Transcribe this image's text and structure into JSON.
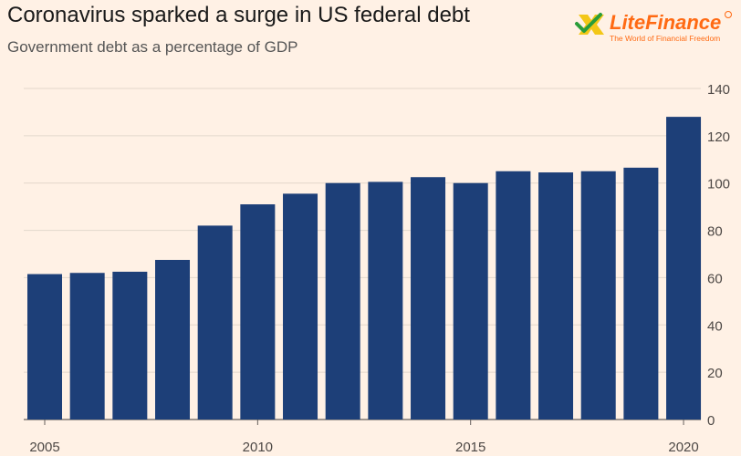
{
  "title": "Coronavirus sparked a surge in US federal debt",
  "subtitle": "Government debt as a percentage of GDP",
  "logo": {
    "name": "LiteFinance",
    "tagline": "The World of Financial Freedom",
    "brand_color": "#ff6a13",
    "accent_color": "#f2c200"
  },
  "chart_data": {
    "type": "bar",
    "categories": [
      "2005",
      "2006",
      "2007",
      "2008",
      "2009",
      "2010",
      "2011",
      "2012",
      "2013",
      "2014",
      "2015",
      "2016",
      "2017",
      "2018",
      "2019",
      "2020"
    ],
    "values": [
      61.5,
      62,
      62.5,
      67.5,
      82,
      91,
      95.5,
      100,
      100.5,
      102.5,
      100,
      105,
      104.5,
      105,
      106.5,
      128
    ],
    "xticks": [
      "2005",
      "2010",
      "2015",
      "2020"
    ],
    "yticks": [
      0,
      20,
      40,
      60,
      80,
      100,
      120,
      140
    ],
    "ylim": [
      0,
      140
    ],
    "grid": true,
    "yaxis_position": "right",
    "bar_color": "#1d3f78"
  }
}
